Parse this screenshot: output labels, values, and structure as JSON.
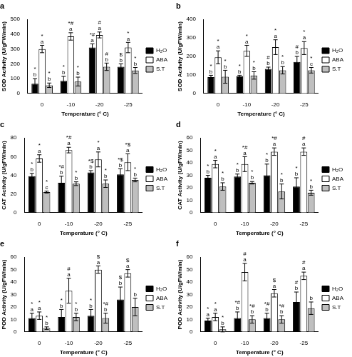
{
  "chart_data": [
    {
      "type": "bar",
      "title": "a",
      "y_label": "SOD Activity (U/gFW/min)",
      "x_label": "Temperature (° C)",
      "categories": [
        "0",
        "-10",
        "-20",
        "-25"
      ],
      "ylim": [
        0,
        500
      ],
      "yticks": [
        0,
        100,
        200,
        300,
        400,
        500
      ],
      "grid": false,
      "legend": "right",
      "series": [
        {
          "name": "H₂O",
          "color": "#000000",
          "values": [
            65,
            85,
            310,
            180
          ],
          "errors": [
            35,
            30,
            25,
            20
          ],
          "significance": [
            [
              "*",
              "b"
            ],
            [
              "*",
              "b"
            ],
            [
              "*#",
              "a"
            ],
            [
              "$",
              "b"
            ]
          ]
        },
        {
          "name": "ABA",
          "color": "#ffffff",
          "values": [
            300,
            385,
            395,
            310
          ],
          "errors": [
            25,
            25,
            20,
            35
          ],
          "significance": [
            [
              "*",
              "a"
            ],
            [
              "*#",
              "a"
            ],
            [
              "#",
              "a"
            ],
            [
              "*",
              "a"
            ]
          ]
        },
        {
          "name": "S.T",
          "color": "#bfbfbf",
          "values": [
            55,
            80,
            180,
            155
          ],
          "errors": [
            15,
            30,
            25,
            20
          ],
          "significance": [
            [
              "*",
              "b"
            ],
            [
              "*",
              "b"
            ],
            [
              "#",
              "b"
            ],
            [
              "*",
              "b"
            ]
          ]
        }
      ]
    },
    {
      "type": "bar",
      "title": "b",
      "y_label": "SOD Activity (U/gFW/min)",
      "x_label": "Temperature (° C)",
      "categories": [
        "0",
        "-10",
        "-20",
        "-25"
      ],
      "ylim": [
        0,
        400
      ],
      "yticks": [
        0,
        100,
        200,
        300,
        400
      ],
      "grid": false,
      "legend": "right",
      "series": [
        {
          "name": "H₂O",
          "color": "#000000",
          "values": [
            88,
            93,
            132,
            170
          ],
          "errors": [
            10,
            5,
            10,
            30
          ],
          "significance": [
            [
              "*",
              "b"
            ],
            [
              "*",
              "b"
            ],
            [
              "#",
              "b"
            ],
            [
              "#",
              "b"
            ]
          ]
        },
        {
          "name": "ABA",
          "color": "#ffffff",
          "values": [
            195,
            230,
            250,
            245
          ],
          "errors": [
            35,
            30,
            40,
            35
          ],
          "significance": [
            [
              "*",
              "a"
            ],
            [
              "*",
              "a"
            ],
            [
              "*",
              "a"
            ],
            [
              "*",
              "a"
            ]
          ]
        },
        {
          "name": "S.T",
          "color": "#bfbfbf",
          "values": [
            90,
            97,
            125,
            125
          ],
          "errors": [
            35,
            20,
            20,
            15
          ],
          "significance": [
            [
              "*",
              "b"
            ],
            [
              "*",
              "b"
            ],
            [
              "*",
              "b"
            ],
            [
              "*",
              "c"
            ]
          ]
        }
      ]
    },
    {
      "type": "bar",
      "title": "c",
      "y_label": "CAT Activity (U/gFW/min)",
      "x_label": "Temperature (° C)",
      "categories": [
        "0",
        "-10",
        "-20",
        "-25"
      ],
      "ylim": [
        0,
        80
      ],
      "yticks": [
        0,
        20,
        40,
        60,
        80
      ],
      "grid": false,
      "legend": "right",
      "series": [
        {
          "name": "H₂O",
          "color": "#000000",
          "values": [
            39,
            32,
            43,
            41
          ],
          "errors": [
            3,
            7,
            2,
            6
          ],
          "significance": [
            [
              "*",
              "b"
            ],
            [
              "*#",
              "b"
            ],
            [
              "*$",
              "b"
            ],
            [
              "*$",
              "b"
            ]
          ]
        },
        {
          "name": "ABA",
          "color": "#ffffff",
          "values": [
            58,
            67,
            57,
            54
          ],
          "errors": [
            4,
            3,
            8,
            9
          ],
          "significance": [
            [
              "*",
              "a"
            ],
            [
              "*#",
              "a"
            ],
            [
              "*",
              "a"
            ],
            [
              "*$",
              "a"
            ]
          ]
        },
        {
          "name": "S.T",
          "color": "#bfbfbf",
          "values": [
            22,
            31,
            31,
            35
          ],
          "errors": [
            1,
            2,
            4,
            2
          ],
          "significance": [
            [
              "*",
              "c"
            ],
            [
              "*",
              "b"
            ],
            [
              "*",
              "b"
            ],
            [
              "*",
              "b"
            ]
          ]
        }
      ]
    },
    {
      "type": "bar",
      "title": "d",
      "y_label": "CAT Activity (U/gFW/min)",
      "x_label": "Temperature (° C)",
      "categories": [
        "0",
        "-10",
        "-20",
        "-25"
      ],
      "ylim": [
        0,
        60
      ],
      "yticks": [
        0,
        10,
        20,
        30,
        40,
        50,
        60
      ],
      "grid": false,
      "legend": "right",
      "series": [
        {
          "name": "H₂O",
          "color": "#000000",
          "values": [
            28,
            29,
            30,
            21
          ],
          "errors": [
            2,
            2,
            9,
            7
          ],
          "significance": [
            [
              "*",
              "b"
            ],
            [
              "*",
              "b"
            ],
            [
              "*",
              "b"
            ],
            [
              "*",
              "b"
            ]
          ]
        },
        {
          "name": "ABA",
          "color": "#ffffff",
          "values": [
            39,
            39,
            49,
            49
          ],
          "errors": [
            3,
            6,
            3,
            3
          ],
          "significance": [
            [
              "*",
              "a"
            ],
            [
              "*#",
              "a"
            ],
            [
              "*#",
              "a"
            ],
            [
              "#",
              "a"
            ]
          ]
        },
        {
          "name": "S.T",
          "color": "#bfbfbf",
          "values": [
            21,
            24,
            17,
            16
          ],
          "errors": [
            3,
            1,
            6,
            2
          ],
          "significance": [
            [
              "*",
              "b"
            ],
            [
              "*",
              "b"
            ],
            [
              "*",
              "b"
            ],
            [
              "*",
              "b"
            ]
          ]
        }
      ]
    },
    {
      "type": "bar",
      "title": "e",
      "y_label": "POD Activity (U/gFW/min)",
      "x_label": "Temperature (° C)",
      "categories": [
        "0",
        "-10",
        "-20",
        "-25"
      ],
      "ylim": [
        0,
        60
      ],
      "yticks": [
        0,
        10,
        20,
        30,
        40,
        50,
        60
      ],
      "grid": false,
      "legend": "right",
      "series": [
        {
          "name": "H₂O",
          "color": "#000000",
          "values": [
            11,
            12,
            13,
            26
          ],
          "errors": [
            4,
            6,
            5,
            10
          ],
          "significance": [
            [
              "*",
              "a"
            ],
            [
              "*",
              "b"
            ],
            [
              "*",
              "b"
            ],
            [
              "$",
              "b"
            ]
          ]
        },
        {
          "name": "ABA",
          "color": "#ffffff",
          "values": [
            13,
            33,
            50,
            47
          ],
          "errors": [
            3,
            10,
            3,
            3
          ],
          "significance": [
            [
              "*",
              "a"
            ],
            [
              "#",
              "a"
            ],
            [
              "$",
              "a"
            ],
            [
              "$",
              "a"
            ]
          ]
        },
        {
          "name": "S.T",
          "color": "#bfbfbf",
          "values": [
            3,
            12,
            11,
            20
          ],
          "errors": [
            1,
            3,
            4,
            7
          ],
          "significance": [
            [
              "*",
              "b"
            ],
            [
              "*",
              "b"
            ],
            [
              "*#",
              "b"
            ],
            [
              "b"
            ]
          ]
        }
      ]
    },
    {
      "type": "bar",
      "title": "f",
      "y_label": "POD Activity (U/gFW/min)",
      "x_label": "Temperature (° C)",
      "categories": [
        "0",
        "-10",
        "-20",
        "-25"
      ],
      "ylim": [
        0,
        60
      ],
      "yticks": [
        0,
        10,
        20,
        30,
        40,
        50,
        60
      ],
      "grid": false,
      "legend": "right",
      "series": [
        {
          "name": "H₂O",
          "color": "#000000",
          "values": [
            9,
            11,
            11,
            24
          ],
          "errors": [
            2,
            5,
            4,
            8
          ],
          "significance": [
            [
              "*",
              "a"
            ],
            [
              "*#",
              "b"
            ],
            [
              "*#",
              "b"
            ],
            [
              "#",
              "b"
            ]
          ]
        },
        {
          "name": "ABA",
          "color": "#ffffff",
          "values": [
            12,
            48,
            31,
            45
          ],
          "errors": [
            3,
            7,
            3,
            3
          ],
          "significance": [
            [
              "*",
              "a"
            ],
            [
              "#",
              "a"
            ],
            [
              "$",
              "a"
            ],
            [
              "#",
              "a"
            ]
          ]
        },
        {
          "name": "S.T",
          "color": "#bfbfbf",
          "values": [
            2,
            10,
            10,
            19
          ],
          "errors": [
            2,
            3,
            3,
            5
          ],
          "significance": [
            [
              "*",
              "b"
            ],
            [
              "*#",
              "b"
            ],
            [
              "*#",
              "b"
            ],
            [
              "b"
            ]
          ]
        }
      ]
    }
  ]
}
